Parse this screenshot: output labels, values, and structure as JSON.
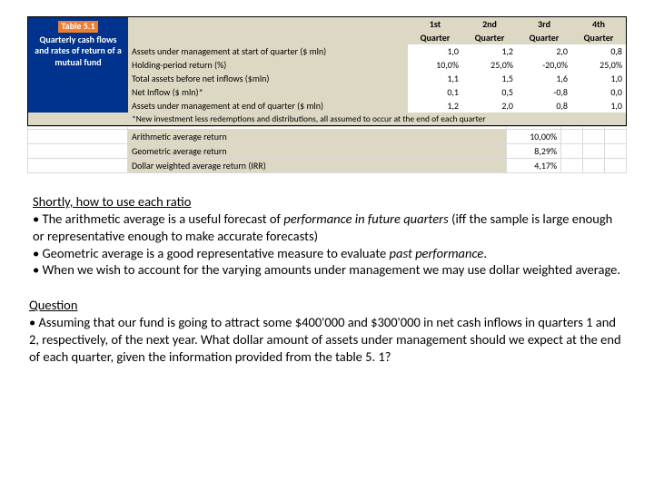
{
  "table": {
    "title_label": "Table 5.1",
    "title_text": "Quarterly cash flows and rates of return of a mutual fund",
    "header_top": [
      "1st",
      "2nd",
      "3rd",
      "4th"
    ],
    "header_bot": [
      "Quarter",
      "Quarter",
      "Quarter",
      "Quarter"
    ],
    "rows": [
      {
        "label": "Assets under management at start of quarter ($ mln)",
        "vals": [
          "1,0",
          "1,2",
          "2,0",
          "0,8"
        ]
      },
      {
        "label": "Holding-period return (%)",
        "vals": [
          "10,0%",
          "25,0%",
          "-20,0%",
          "25,0%"
        ]
      },
      {
        "label": "Total assets before net inflows ($mln)",
        "vals": [
          "1,1",
          "1,5",
          "1,6",
          "1,0"
        ]
      },
      {
        "label": "Net Inflow ($ mln)*",
        "vals": [
          "0,1",
          "0,5",
          "-0,8",
          "0,0"
        ]
      },
      {
        "label": "Assets under management at end of quarter ($ mln)",
        "vals": [
          "1,2",
          "2,0",
          "0,8",
          "1,0"
        ]
      }
    ],
    "footnote": "*New investment less redemptions and distributions, all assumed to occur at the end of each quarter",
    "summary": [
      {
        "label": "Arithmetic average return",
        "val": "10,00%"
      },
      {
        "label": "Geometric average return",
        "val": "8,29%"
      },
      {
        "label": "Dollar weighted average return (IRR)",
        "val": "4,17%"
      }
    ]
  },
  "body1": {
    "heading": "Shortly, how to use each ratio",
    "l1a": "• The arithmetic average is a useful forecast of ",
    "l1b": "performance in future quarters",
    "l1c": " (iff the sample is large enough or representative enough to make accurate forecasts)",
    "l2a": "• Geometric average is a good representative measure to evaluate ",
    "l2b": "past performance",
    "l2c": ".",
    "l3": "• When we wish to account for the varying amounts under management we may use dollar weighted average."
  },
  "body2": {
    "heading": "Question",
    "text": "• Assuming that our fund is going to attract some $400'000 and $300'000  in net cash inflows in quarters 1 and 2, respectively, of the next year. What dollar amount of assets under management should we expect at the end of each quarter, given the information provided from the table 5. 1?"
  },
  "style": {
    "title_bg": "#00338d",
    "label_bg": "#ed7d31",
    "tan_bg": "#ddd8c4"
  }
}
